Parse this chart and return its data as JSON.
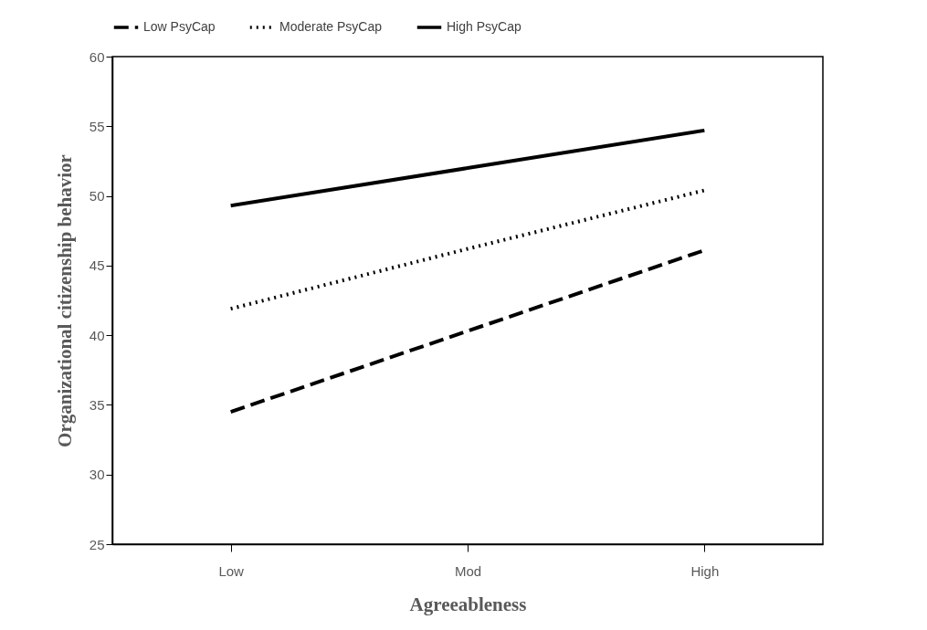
{
  "chart_data": {
    "type": "line",
    "xlabel": "Agreeableness",
    "ylabel": "Organizational citizenship behavior",
    "categories": [
      "Low",
      "Mod",
      "High"
    ],
    "series": [
      {
        "name": "Low PsyCap",
        "color": "#000000",
        "line_style": "dashed",
        "values": [
          34.5,
          40.3,
          46.1
        ]
      },
      {
        "name": "Moderate PsyCap",
        "color": "#000000",
        "line_style": "dotted",
        "values": [
          41.9,
          46.2,
          50.4
        ]
      },
      {
        "name": "High PsyCap",
        "color": "#000000",
        "line_style": "solid",
        "values": [
          49.3,
          52.0,
          54.7
        ]
      }
    ],
    "ylim": [
      25,
      60
    ],
    "yticks": [
      25,
      30,
      35,
      40,
      45,
      50,
      55,
      60
    ],
    "grid": false,
    "legend": "top",
    "marker": "none"
  }
}
